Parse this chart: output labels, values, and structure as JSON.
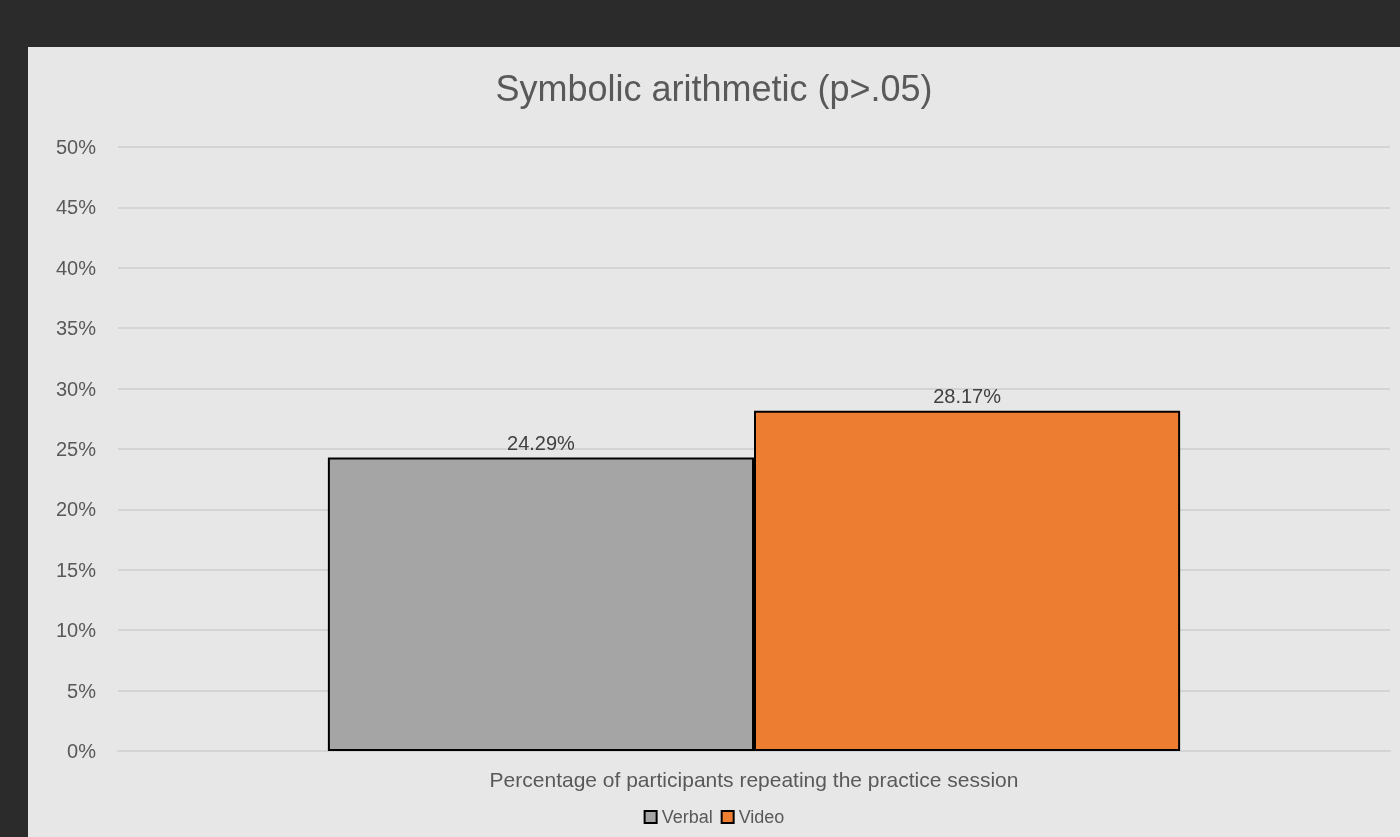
{
  "chart_data": {
    "type": "bar",
    "title": "Symbolic arithmetic (p>.05)",
    "categories": [
      "Percentage of participants repeating the practice session"
    ],
    "series": [
      {
        "name": "Verbal",
        "color": "#a5a5a5",
        "values": [
          24.29
        ],
        "value_labels": [
          "24.29%"
        ]
      },
      {
        "name": "Video",
        "color": "#ed7d31",
        "values": [
          28.17
        ],
        "value_labels": [
          "28.17%"
        ]
      }
    ],
    "ylim": [
      0,
      50
    ],
    "yticks": [
      {
        "value": 0,
        "label": "0%"
      },
      {
        "value": 5,
        "label": "5%"
      },
      {
        "value": 10,
        "label": "10%"
      },
      {
        "value": 15,
        "label": "15%"
      },
      {
        "value": 20,
        "label": "20%"
      },
      {
        "value": 25,
        "label": "25%"
      },
      {
        "value": 30,
        "label": "30%"
      },
      {
        "value": 35,
        "label": "35%"
      },
      {
        "value": 40,
        "label": "40%"
      },
      {
        "value": 45,
        "label": "45%"
      },
      {
        "value": 50,
        "label": "50%"
      }
    ],
    "grid": "y",
    "legend": "bottom"
  }
}
